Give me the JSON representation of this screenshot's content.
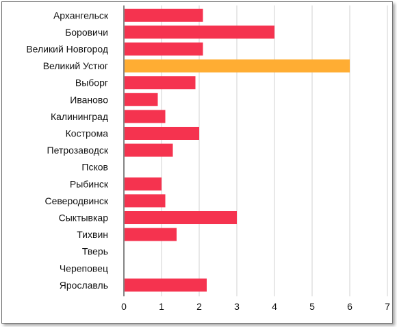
{
  "chart_data": {
    "type": "bar",
    "orientation": "horizontal",
    "categories": [
      "Архангельск",
      "Боровичи",
      "Великий Новгород",
      "Великий Устюг",
      "Выборг",
      "Иваново",
      "Калининград",
      "Кострома",
      "Петрозаводск",
      "Псков",
      "Рыбинск",
      "Северодвинск",
      "Сыктывкар",
      "Тихвин",
      "Тверь",
      "Череповец",
      "Ярославль"
    ],
    "values": [
      2.1,
      4,
      2.1,
      6,
      1.9,
      0.9,
      1.1,
      2,
      1.3,
      0,
      1,
      1.1,
      3,
      1.4,
      0,
      0,
      2.2
    ],
    "highlight_index": 3,
    "xlim": [
      0,
      7
    ],
    "xticks": [
      "0",
      "1",
      "2",
      "3",
      "4",
      "5",
      "6",
      "7"
    ],
    "title": "",
    "xlabel": "",
    "ylabel": "",
    "grid": "vertical",
    "legend": "none",
    "colors": {
      "bar": "#f5334f",
      "highlight": "#ffad33",
      "grid": "#d0d0d0",
      "axis": "#333333"
    }
  }
}
